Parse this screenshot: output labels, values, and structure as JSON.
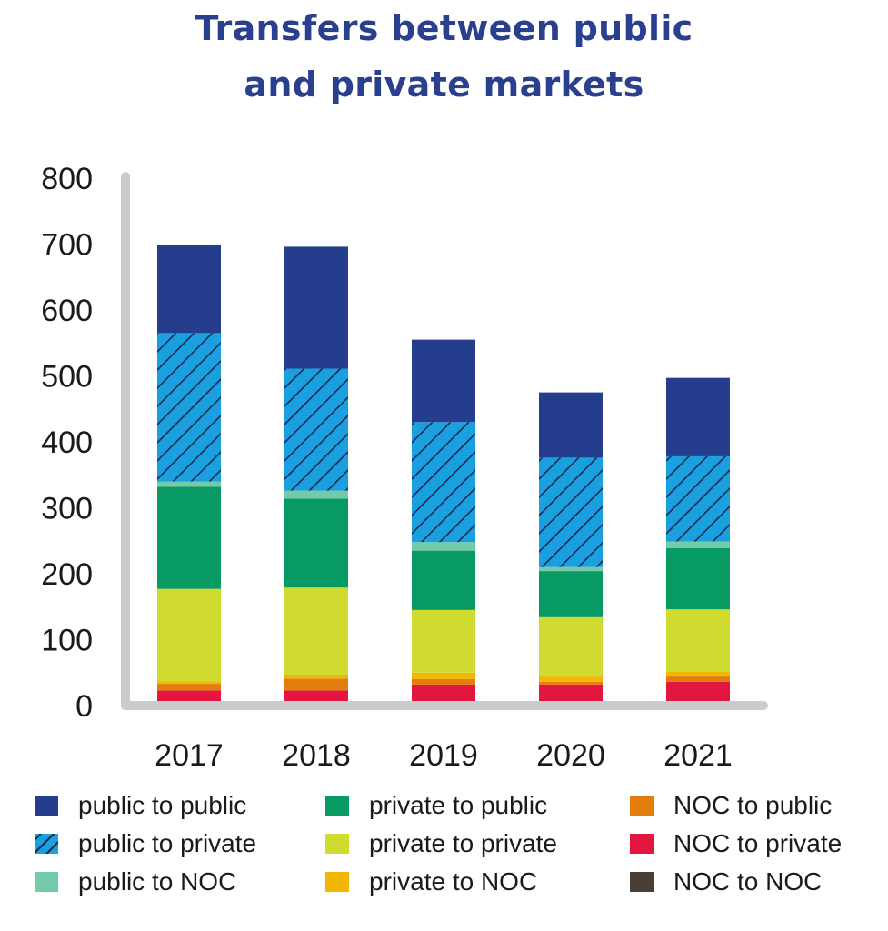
{
  "chart_data": {
    "type": "bar",
    "stacked": true,
    "title": "Transfers between public and private markets",
    "title_lines": [
      "Transfers between public",
      "and private markets"
    ],
    "categories": [
      "2017",
      "2018",
      "2019",
      "2020",
      "2021"
    ],
    "ylim": [
      0,
      800
    ],
    "yticks": [
      "0",
      "100",
      "200",
      "300",
      "400",
      "500",
      "600",
      "700",
      "800"
    ],
    "series": [
      {
        "name": "NOC to NOC",
        "color": "#4a3f35",
        "hatch": false,
        "values": [
          5,
          5,
          0,
          0,
          0
        ]
      },
      {
        "name": "NOC to private",
        "color": "#e3163f",
        "hatch": false,
        "values": [
          18,
          18,
          32,
          32,
          36
        ]
      },
      {
        "name": "NOC to public",
        "color": "#e37d0c",
        "hatch": false,
        "values": [
          10,
          18,
          8,
          4,
          8
        ]
      },
      {
        "name": "private to NOC",
        "color": "#f2b705",
        "hatch": false,
        "values": [
          4,
          6,
          10,
          8,
          8
        ]
      },
      {
        "name": "private to private",
        "color": "#cfdc2f",
        "hatch": false,
        "values": [
          140,
          132,
          95,
          90,
          94
        ]
      },
      {
        "name": "private to public",
        "color": "#079a62",
        "hatch": false,
        "values": [
          155,
          135,
          90,
          70,
          93
        ]
      },
      {
        "name": "public to NOC",
        "color": "#74cba9",
        "hatch": false,
        "values": [
          8,
          12,
          13,
          6,
          10
        ]
      },
      {
        "name": "public to private",
        "color": "#1aa0df",
        "hatch": true,
        "values": [
          225,
          185,
          182,
          166,
          129
        ]
      },
      {
        "name": "public to public",
        "color": "#253d8d",
        "hatch": false,
        "values": [
          133,
          185,
          125,
          99,
          119
        ]
      }
    ],
    "legend": {
      "placement": "bottom",
      "columns": [
        [
          "public to public",
          "public to private",
          "public to NOC"
        ],
        [
          "private to public",
          "private to private",
          "private to NOC"
        ],
        [
          "NOC to public",
          "NOC to private",
          "NOC to NOC"
        ]
      ]
    },
    "grid": false,
    "axis_color": "#c9ccce"
  }
}
